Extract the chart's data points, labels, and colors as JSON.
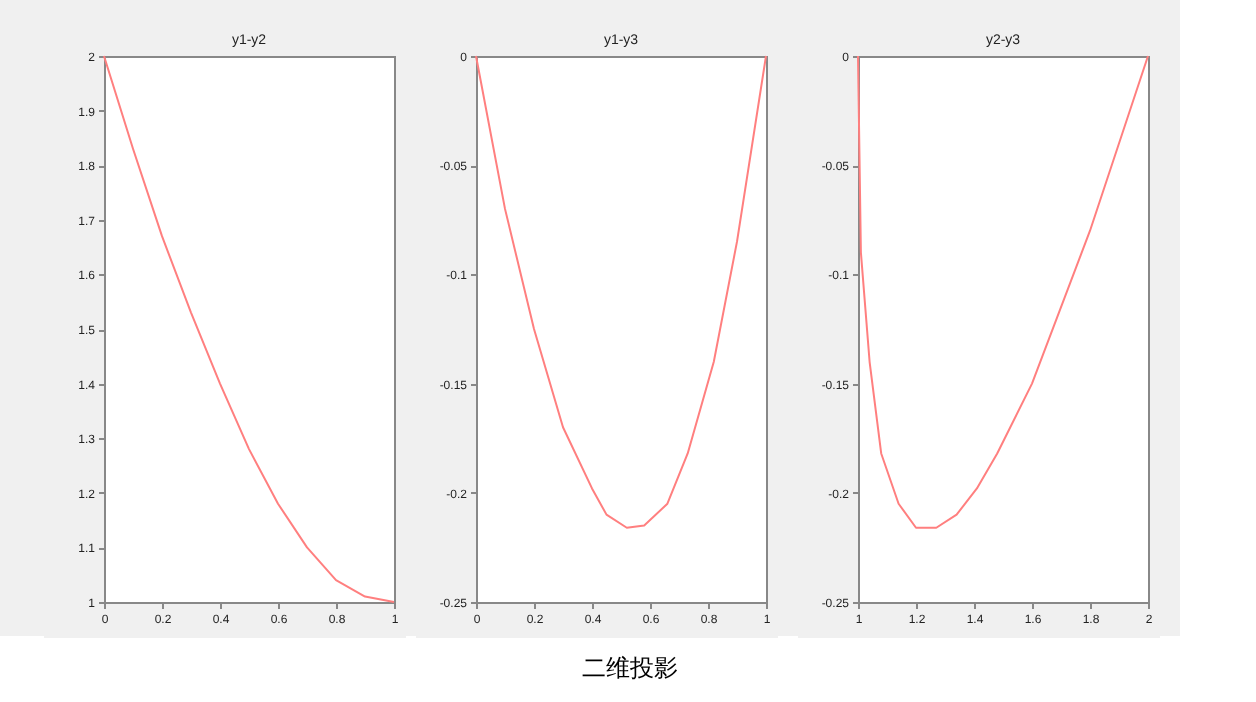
{
  "chart_data": [
    {
      "type": "line",
      "title": "y1-y2",
      "x": [
        0,
        0.1,
        0.2,
        0.3,
        0.4,
        0.5,
        0.6,
        0.7,
        0.8,
        0.9,
        1
      ],
      "series": [
        {
          "color": "#ff7f7f",
          "values": [
            2,
            1.83,
            1.67,
            1.53,
            1.4,
            1.28,
            1.18,
            1.1,
            1.04,
            1.01,
            1
          ]
        }
      ],
      "xlim": [
        0,
        1
      ],
      "ylim": [
        1,
        2
      ],
      "xticks": [
        0,
        0.2,
        0.4,
        0.6,
        0.8,
        1
      ],
      "yticks": [
        1,
        1.1,
        1.2,
        1.3,
        1.4,
        1.5,
        1.6,
        1.7,
        1.8,
        1.9,
        2
      ],
      "grid": false
    },
    {
      "type": "line",
      "title": "y1-y3",
      "x": [
        0,
        0.1,
        0.2,
        0.3,
        0.4,
        0.45,
        0.52,
        0.58,
        0.66,
        0.73,
        0.82,
        0.9,
        1
      ],
      "series": [
        {
          "color": "#ff7f7f",
          "values": [
            0,
            -0.07,
            -0.125,
            -0.17,
            -0.198,
            -0.21,
            -0.216,
            -0.215,
            -0.205,
            -0.182,
            -0.14,
            -0.085,
            0
          ]
        }
      ],
      "xlim": [
        0,
        1
      ],
      "ylim": [
        -0.25,
        0
      ],
      "xticks": [
        0,
        0.2,
        0.4,
        0.6,
        0.8,
        1
      ],
      "yticks": [
        -0.25,
        -0.2,
        -0.15,
        -0.1,
        -0.05,
        0
      ],
      "grid": false,
      "annotations": [
        "二维投影"
      ]
    },
    {
      "type": "line",
      "title": "y2-y3",
      "x": [
        1,
        1.01,
        1.04,
        1.08,
        1.14,
        1.2,
        1.27,
        1.34,
        1.41,
        1.48,
        1.6,
        1.8,
        2
      ],
      "series": [
        {
          "color": "#ff7f7f",
          "values": [
            0,
            -0.09,
            -0.14,
            -0.182,
            -0.205,
            -0.216,
            -0.216,
            -0.21,
            -0.198,
            -0.182,
            -0.15,
            -0.08,
            0
          ]
        }
      ],
      "xlim": [
        1,
        2
      ],
      "ylim": [
        -0.25,
        0
      ],
      "xticks": [
        1,
        1.2,
        1.4,
        1.6,
        1.8,
        2
      ],
      "yticks": [
        -0.25,
        -0.2,
        -0.15,
        -0.1,
        -0.05,
        0
      ],
      "grid": false
    }
  ]
}
